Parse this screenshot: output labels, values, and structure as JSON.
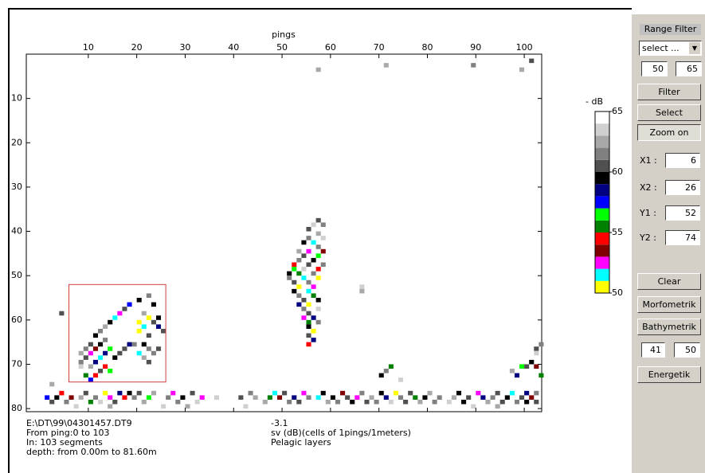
{
  "chart_data": {
    "type": "heatmap",
    "x_label": "pings",
    "xlim": [
      -2.8,
      103.6
    ],
    "xticks": [
      10,
      20,
      30,
      40,
      50,
      60,
      70,
      80,
      90,
      100
    ],
    "ylim": [
      0,
      80.7
    ],
    "yticks": [
      10,
      20,
      30,
      40,
      50,
      60,
      70,
      80
    ],
    "colorbar": {
      "label": "- dB",
      "lim": [
        50,
        65
      ],
      "ticks": [
        50,
        55,
        60,
        65
      ],
      "colors": [
        "#ffff00",
        "#00ffff",
        "#ff00ff",
        "#800000",
        "#ff0000",
        "#008000",
        "#00ff00",
        "#0000ff",
        "#000080",
        "#000000",
        "#505050",
        "#808080",
        "#a8a8a8",
        "#d0d0d0",
        "#ffffff"
      ]
    },
    "cells": [
      [
        22,
        54,
        61
      ],
      [
        20,
        55,
        59
      ],
      [
        18,
        56,
        57
      ],
      [
        17,
        57,
        60
      ],
      [
        23,
        56,
        59
      ],
      [
        16,
        58,
        52
      ],
      [
        21,
        58,
        62
      ],
      [
        15,
        59,
        51
      ],
      [
        22,
        59,
        50
      ],
      [
        24,
        59,
        59
      ],
      [
        14,
        60,
        59
      ],
      [
        20,
        60,
        50
      ],
      [
        23,
        60,
        60
      ],
      [
        13,
        61,
        62
      ],
      [
        21,
        61,
        51
      ],
      [
        24,
        61,
        58
      ],
      [
        12,
        62,
        61
      ],
      [
        20,
        62,
        50
      ],
      [
        25,
        62,
        60
      ],
      [
        11,
        63,
        59
      ],
      [
        22,
        63,
        60
      ],
      [
        13,
        64,
        61
      ],
      [
        10,
        65,
        60
      ],
      [
        12,
        65,
        59
      ],
      [
        18,
        65,
        58
      ],
      [
        19,
        65,
        61
      ],
      [
        21,
        65,
        59
      ],
      [
        9,
        66,
        61
      ],
      [
        11,
        66,
        53
      ],
      [
        14,
        66,
        56
      ],
      [
        17,
        66,
        60
      ],
      [
        22,
        66,
        61
      ],
      [
        24,
        66,
        60
      ],
      [
        8,
        67,
        62
      ],
      [
        10,
        67,
        52
      ],
      [
        13,
        67,
        58
      ],
      [
        16,
        67,
        60
      ],
      [
        20,
        67,
        51
      ],
      [
        23,
        67,
        61
      ],
      [
        9,
        68,
        60
      ],
      [
        12,
        68,
        51
      ],
      [
        15,
        68,
        59
      ],
      [
        21,
        68,
        62
      ],
      [
        8,
        69,
        61
      ],
      [
        11,
        69,
        58
      ],
      [
        22,
        69,
        60
      ],
      [
        8,
        70,
        63
      ],
      [
        10,
        70,
        62
      ],
      [
        13,
        70,
        54
      ],
      [
        12,
        71,
        60
      ],
      [
        14,
        71,
        56
      ],
      [
        9,
        72,
        55
      ],
      [
        11,
        72,
        54
      ],
      [
        10,
        73,
        57
      ],
      [
        4,
        58,
        60
      ],
      [
        2,
        74,
        62
      ],
      [
        57,
        37,
        60
      ],
      [
        56,
        38,
        63
      ],
      [
        58,
        38,
        61
      ],
      [
        55,
        39,
        60
      ],
      [
        57,
        40,
        62
      ],
      [
        55,
        41,
        61
      ],
      [
        58,
        41,
        63
      ],
      [
        54,
        42,
        59
      ],
      [
        56,
        42,
        51
      ],
      [
        57,
        43,
        61
      ],
      [
        53,
        44,
        62
      ],
      [
        55,
        44,
        52
      ],
      [
        58,
        44,
        53
      ],
      [
        54,
        45,
        60
      ],
      [
        57,
        45,
        56
      ],
      [
        53,
        46,
        61
      ],
      [
        56,
        46,
        59
      ],
      [
        52,
        47,
        54
      ],
      [
        55,
        47,
        60
      ],
      [
        58,
        47,
        61
      ],
      [
        52,
        48,
        56
      ],
      [
        54,
        48,
        63
      ],
      [
        57,
        48,
        54
      ],
      [
        51,
        49,
        59
      ],
      [
        53,
        49,
        55
      ],
      [
        56,
        49,
        61
      ],
      [
        51,
        50,
        61
      ],
      [
        54,
        50,
        51
      ],
      [
        57,
        50,
        50
      ],
      [
        52,
        51,
        60
      ],
      [
        55,
        51,
        61
      ],
      [
        53,
        52,
        50
      ],
      [
        56,
        52,
        52
      ],
      [
        52,
        53,
        59
      ],
      [
        55,
        53,
        51
      ],
      [
        53,
        54,
        61
      ],
      [
        56,
        54,
        55
      ],
      [
        54,
        55,
        60
      ],
      [
        57,
        55,
        59
      ],
      [
        53,
        56,
        58
      ],
      [
        55,
        56,
        50
      ],
      [
        54,
        57,
        61
      ],
      [
        57,
        57,
        63
      ],
      [
        55,
        58,
        60
      ],
      [
        54,
        59,
        52
      ],
      [
        56,
        59,
        58
      ],
      [
        55,
        60,
        55
      ],
      [
        57,
        60,
        61
      ],
      [
        55,
        61,
        59
      ],
      [
        56,
        62,
        50
      ],
      [
        55,
        63,
        60
      ],
      [
        56,
        64,
        58
      ],
      [
        55,
        65,
        54
      ],
      [
        66,
        52,
        63
      ],
      [
        66,
        53,
        62
      ],
      [
        101,
        1,
        60
      ],
      [
        89,
        2,
        61
      ],
      [
        71,
        2,
        62
      ],
      [
        57,
        3,
        62
      ],
      [
        99,
        3,
        62
      ],
      [
        90,
        4,
        64
      ],
      [
        92,
        5,
        64
      ],
      [
        103,
        65,
        61
      ],
      [
        102,
        66,
        60
      ],
      [
        102,
        67,
        63
      ],
      [
        101,
        69,
        59
      ],
      [
        99,
        70,
        56
      ],
      [
        100,
        70,
        60
      ],
      [
        102,
        70,
        53
      ],
      [
        97,
        71,
        62
      ],
      [
        103,
        72,
        55
      ],
      [
        98,
        72,
        58
      ],
      [
        71,
        71,
        61
      ],
      [
        72,
        70,
        55
      ],
      [
        70,
        72,
        59
      ],
      [
        74,
        73,
        63
      ],
      [
        4,
        76,
        54
      ],
      [
        9,
        76,
        60
      ],
      [
        13,
        76,
        50
      ],
      [
        16,
        76,
        58
      ],
      [
        18,
        76,
        59
      ],
      [
        20,
        76,
        60
      ],
      [
        23,
        76,
        62
      ],
      [
        27,
        76,
        52
      ],
      [
        31,
        76,
        60
      ],
      [
        38,
        76,
        64
      ],
      [
        43,
        76,
        61
      ],
      [
        48,
        76,
        51
      ],
      [
        50,
        76,
        60
      ],
      [
        54,
        76,
        52
      ],
      [
        58,
        76,
        59
      ],
      [
        62,
        76,
        53
      ],
      [
        66,
        76,
        61
      ],
      [
        70,
        76,
        59
      ],
      [
        73,
        76,
        50
      ],
      [
        76,
        76,
        60
      ],
      [
        80,
        76,
        62
      ],
      [
        86,
        76,
        59
      ],
      [
        90,
        76,
        52
      ],
      [
        94,
        76,
        60
      ],
      [
        97,
        76,
        51
      ],
      [
        100,
        76,
        58
      ],
      [
        102,
        76,
        61
      ],
      [
        1,
        77,
        57
      ],
      [
        3,
        77,
        59
      ],
      [
        6,
        77,
        53
      ],
      [
        8,
        77,
        62
      ],
      [
        11,
        77,
        61
      ],
      [
        14,
        77,
        52
      ],
      [
        17,
        77,
        54
      ],
      [
        19,
        77,
        61
      ],
      [
        22,
        77,
        56
      ],
      [
        26,
        77,
        61
      ],
      [
        29,
        77,
        59
      ],
      [
        33,
        77,
        52
      ],
      [
        36,
        77,
        63
      ],
      [
        41,
        77,
        60
      ],
      [
        44,
        77,
        62
      ],
      [
        47,
        77,
        55
      ],
      [
        49,
        77,
        53
      ],
      [
        52,
        77,
        58
      ],
      [
        55,
        77,
        61
      ],
      [
        57,
        77,
        51
      ],
      [
        60,
        77,
        59
      ],
      [
        63,
        77,
        60
      ],
      [
        65,
        77,
        52
      ],
      [
        68,
        77,
        62
      ],
      [
        71,
        77,
        58
      ],
      [
        74,
        77,
        61
      ],
      [
        77,
        77,
        55
      ],
      [
        79,
        77,
        59
      ],
      [
        82,
        77,
        61
      ],
      [
        85,
        77,
        62
      ],
      [
        88,
        77,
        60
      ],
      [
        91,
        77,
        58
      ],
      [
        93,
        77,
        61
      ],
      [
        96,
        77,
        59
      ],
      [
        99,
        77,
        60
      ],
      [
        101,
        77,
        53
      ],
      [
        2,
        78,
        60
      ],
      [
        5,
        78,
        61
      ],
      [
        10,
        78,
        55
      ],
      [
        12,
        78,
        63
      ],
      [
        15,
        78,
        60
      ],
      [
        21,
        78,
        62
      ],
      [
        24,
        78,
        64
      ],
      [
        28,
        78,
        61
      ],
      [
        32,
        78,
        63
      ],
      [
        40,
        78,
        64
      ],
      [
        46,
        78,
        62
      ],
      [
        51,
        78,
        61
      ],
      [
        53,
        78,
        60
      ],
      [
        59,
        78,
        62
      ],
      [
        61,
        78,
        61
      ],
      [
        64,
        78,
        59
      ],
      [
        67,
        78,
        60
      ],
      [
        69,
        78,
        61
      ],
      [
        72,
        78,
        63
      ],
      [
        75,
        78,
        60
      ],
      [
        78,
        78,
        62
      ],
      [
        81,
        78,
        61
      ],
      [
        84,
        78,
        63
      ],
      [
        87,
        78,
        59
      ],
      [
        92,
        78,
        62
      ],
      [
        95,
        78,
        60
      ],
      [
        98,
        78,
        61
      ],
      [
        100,
        78,
        59
      ],
      [
        102,
        78,
        60
      ],
      [
        7,
        79,
        63
      ],
      [
        14,
        79,
        62
      ],
      [
        25,
        79,
        63
      ],
      [
        30,
        79,
        62
      ],
      [
        35,
        79,
        64
      ],
      [
        42,
        79,
        63
      ],
      [
        56,
        79,
        64
      ],
      [
        89,
        79,
        63
      ],
      [
        94,
        79,
        62
      ],
      [
        1,
        79,
        65
      ]
    ],
    "zoom_box_color": "#d04040"
  },
  "info": {
    "left": [
      "E:\\DT\\99\\04301457.DT9",
      "From ping:0 to 103",
      "In: 103 segments",
      "depth: from 0.00m to 81.60m"
    ],
    "right": [
      "-3.1",
      "sv (dB)(cells of 1pings/1meters)",
      "Pelagic layers"
    ]
  },
  "panel": {
    "title": "Range Filter",
    "select": "select ...",
    "range": [
      50,
      65
    ],
    "buttons": [
      "Filter",
      "Select",
      "Zoom on"
    ],
    "zoom": [
      {
        "label": "X1 :",
        "value": 6
      },
      {
        "label": "X2 :",
        "value": 26
      },
      {
        "label": "Y1 :",
        "value": 52
      },
      {
        "label": "Y2 :",
        "value": 74
      }
    ],
    "tools": [
      "Clear",
      "Morfometrik",
      "Bathymetrik"
    ],
    "layer": [
      41,
      50
    ],
    "last": "Energetik"
  }
}
